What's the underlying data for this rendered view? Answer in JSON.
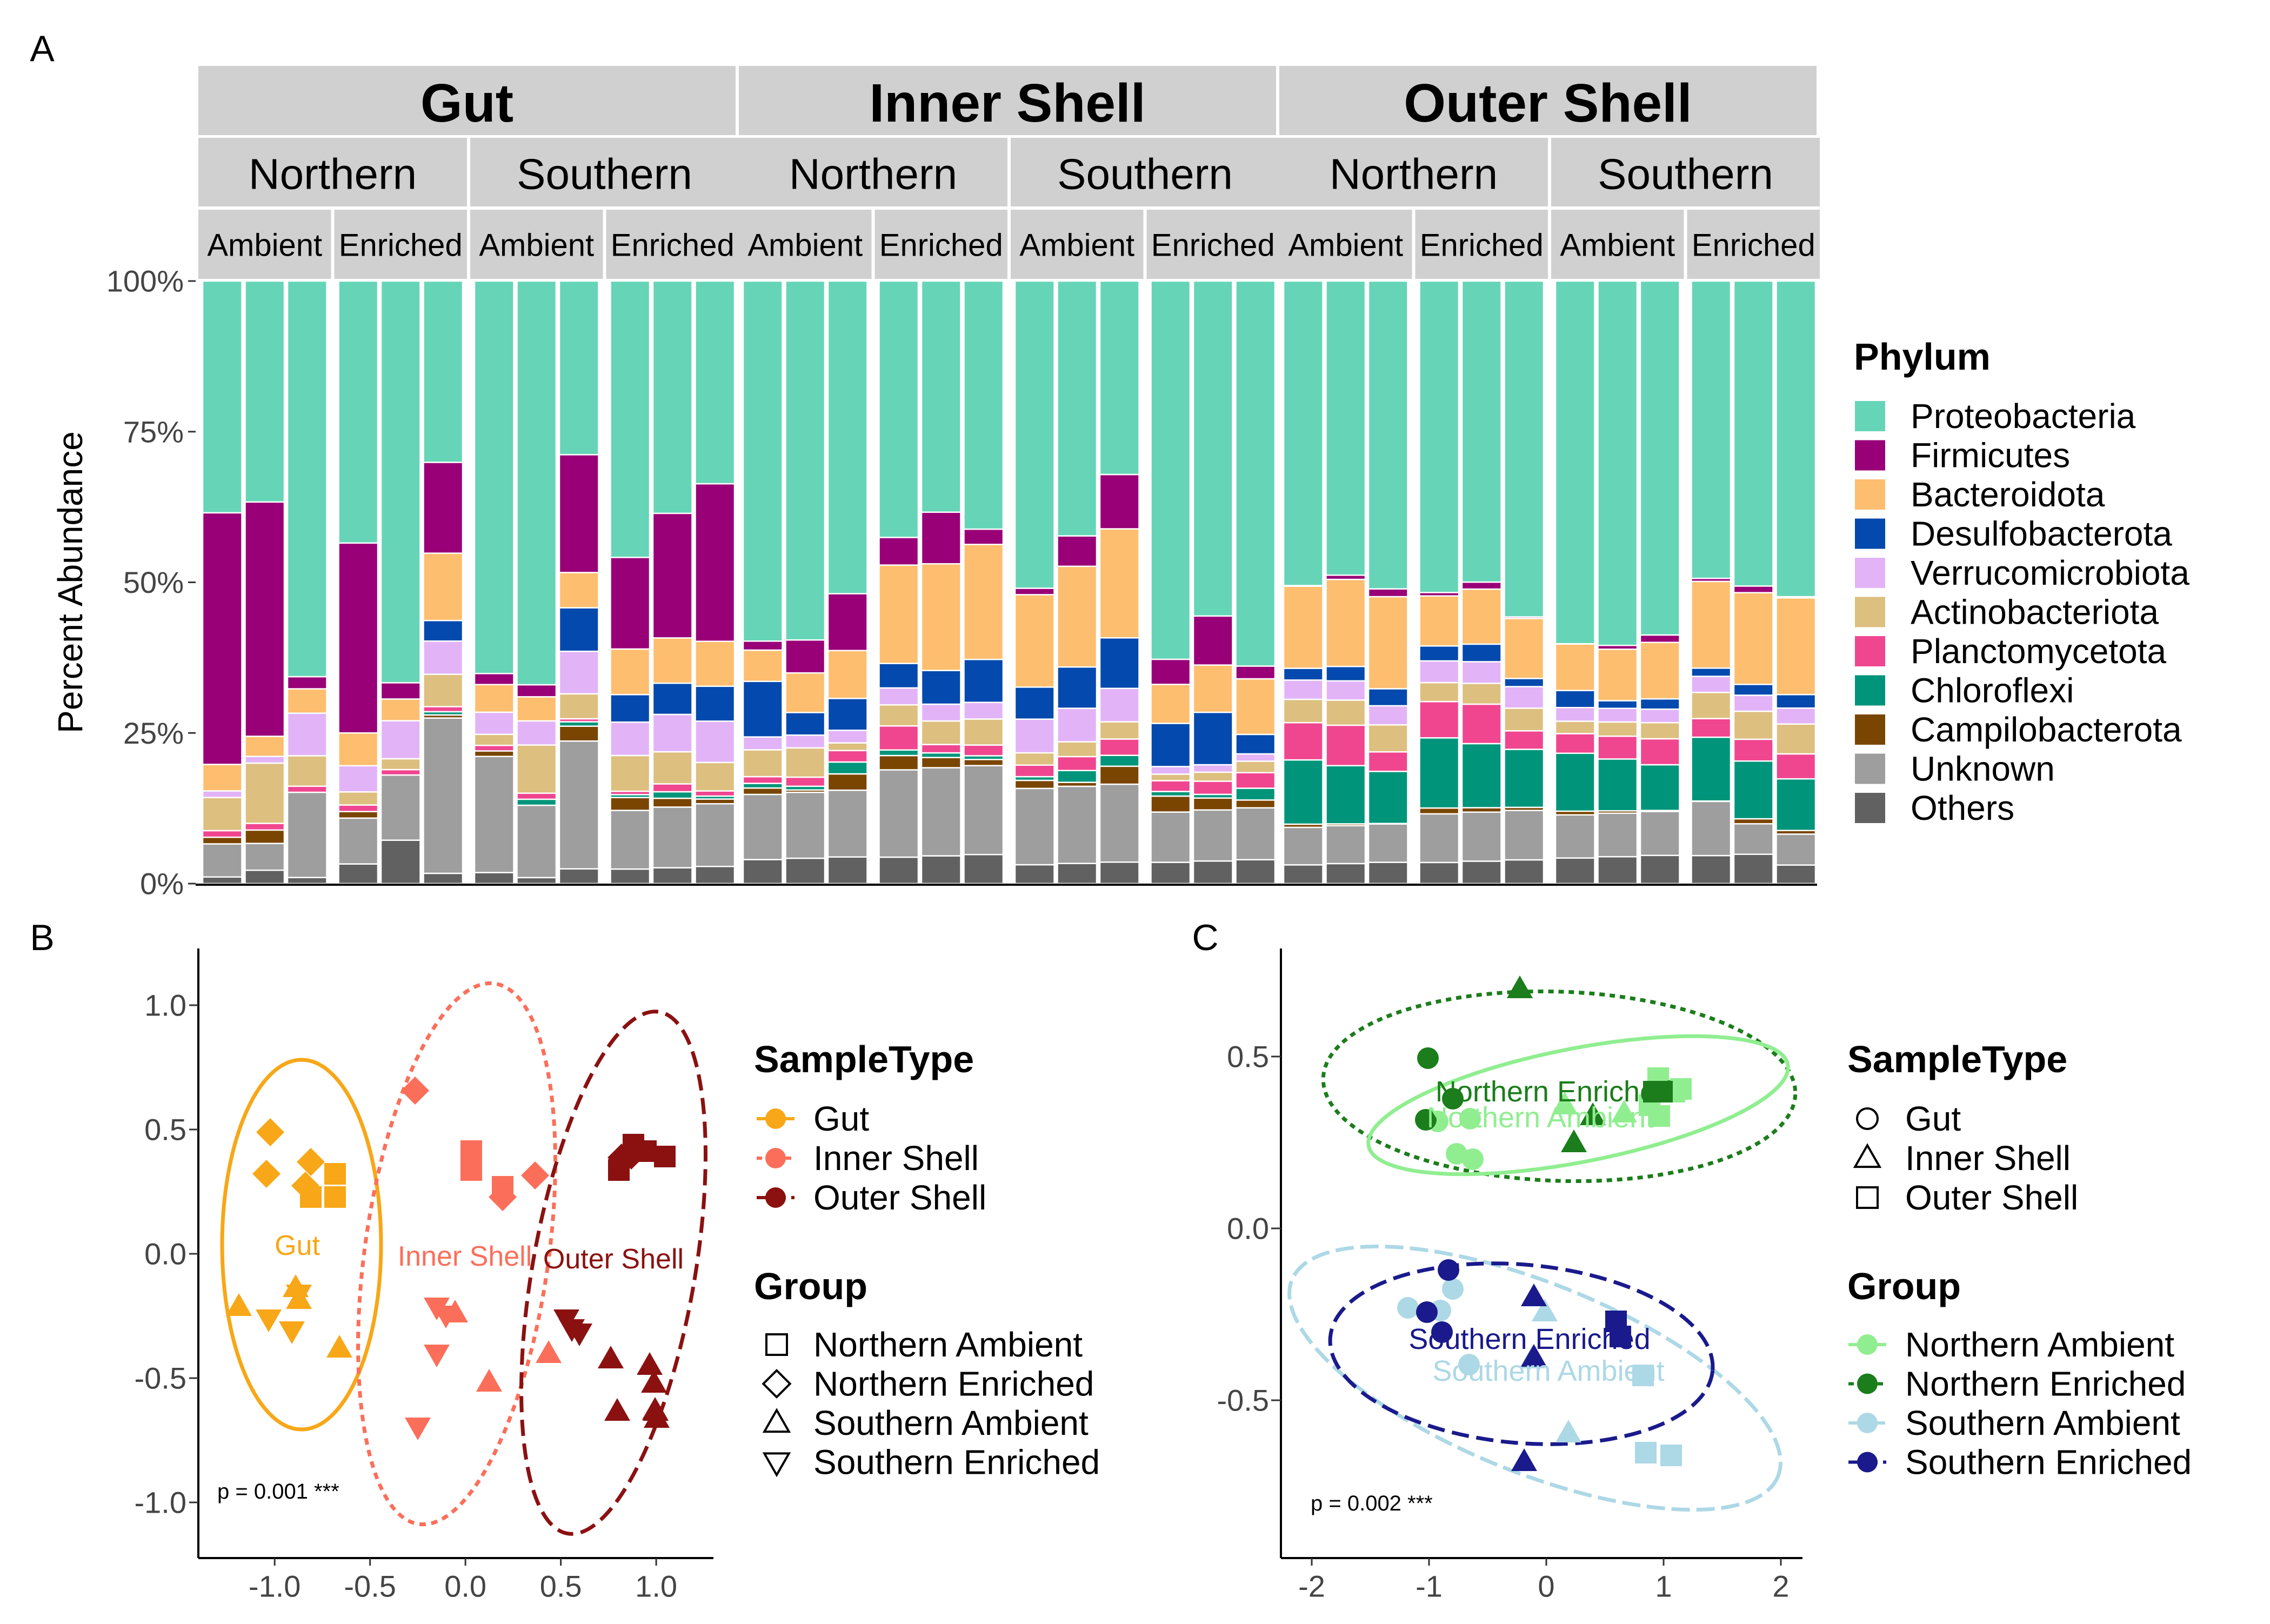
{
  "panel_labels": {
    "a": "A",
    "b": "B",
    "c": "C"
  },
  "colors": {
    "Proteobacteria": "#66D5B7",
    "Firmicutes": "#990077",
    "Bacteroidota": "#FEBE6F",
    "Desulfobacterota": "#0449AD",
    "Verrucomicrobiota": "#E2B4F7",
    "Actinobacteriota": "#DDBF7F",
    "Planctomycetota": "#F0468F",
    "Chloroflexi": "#00957A",
    "Campilobacterota": "#7A4500",
    "Unknown": "#9E9E9E",
    "Others": "#616161",
    "Gut": "#F7A717",
    "Inner Shell": "#FB6F5A",
    "Outer Shell": "#8B1111",
    "Northern Ambient": "#90EE90",
    "Northern Enriched": "#1B7D1B",
    "Southern Ambient": "#ADD8E6",
    "Southern Enriched": "#1A1A8C"
  },
  "chart_data": [
    {
      "type": "bar",
      "ylabel": "Percent Abundance",
      "yticks": [
        "0%",
        "25%",
        "50%",
        "75%",
        "100%"
      ],
      "ylim": [
        0,
        100
      ],
      "facets": {
        "sample_types": [
          "Gut",
          "Inner Shell",
          "Outer Shell"
        ],
        "regions": [
          "Northern",
          "Southern"
        ],
        "treatments": [
          "Ambient",
          "Enriched"
        ]
      },
      "legend": {
        "title": "Phylum",
        "entries": [
          "Proteobacteria",
          "Firmicutes",
          "Bacteroidota",
          "Desulfobacterota",
          "Verrucomicrobiota",
          "Actinobacteriota",
          "Planctomycetota",
          "Chloroflexi",
          "Campilobacterota",
          "Unknown",
          "Others"
        ]
      },
      "stack_order_bottom_up": [
        "Others",
        "Unknown",
        "Campilobacterota",
        "Chloroflexi",
        "Planctomycetota",
        "Actinobacteriota",
        "Verrucomicrobiota",
        "Desulfobacterota",
        "Bacteroidota",
        "Firmicutes",
        "Proteobacteria"
      ],
      "bars": [
        [
          [
            1,
            5,
            1,
            0,
            1,
            5,
            1,
            0,
            4,
            38,
            35
          ],
          [
            2,
            4,
            2,
            0,
            1,
            9,
            1,
            0,
            3,
            35,
            33
          ],
          [
            1,
            14,
            0,
            0,
            1,
            5,
            7,
            0,
            4,
            2,
            65
          ]
        ],
        [
          [
            3,
            7,
            1,
            0,
            1,
            2,
            4,
            0,
            5,
            29,
            40
          ],
          [
            8,
            12,
            0,
            0,
            1,
            2,
            7,
            0,
            4,
            3,
            74
          ]
        ],
        [
          [
            2,
            21,
            1,
            0,
            1,
            2,
            4,
            0,
            5,
            2,
            71
          ],
          [
            1,
            12,
            0,
            1,
            1,
            8,
            4,
            0,
            4,
            2,
            67
          ]
        ]
      ]
    }
  ]
}
